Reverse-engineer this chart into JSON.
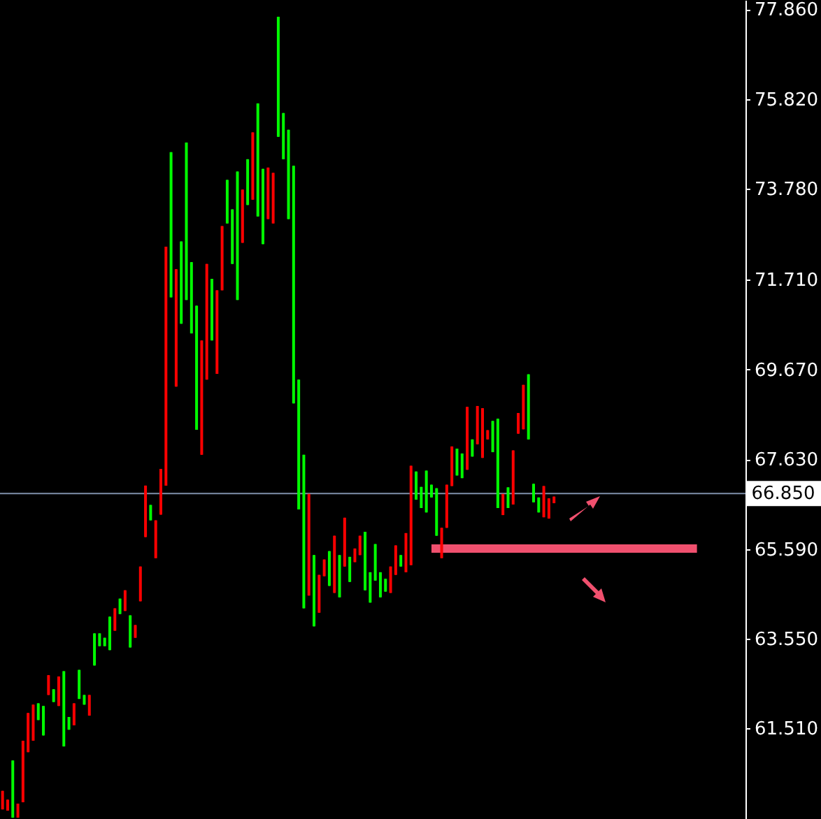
{
  "chart_data": {
    "type": "candlestick",
    "categories": [
      null,
      null,
      null,
      null,
      null,
      null,
      null,
      null,
      null,
      null,
      null,
      null,
      null,
      null,
      null,
      null,
      null,
      null,
      null,
      null,
      null,
      null,
      null,
      null,
      null,
      null,
      null,
      null,
      null,
      null,
      null,
      null,
      null,
      null,
      null,
      null,
      null,
      null,
      null,
      null,
      null,
      null,
      null,
      null,
      null,
      null,
      null,
      null,
      null,
      null,
      null,
      null,
      null,
      null,
      null,
      null,
      null,
      null,
      null,
      null,
      null,
      null,
      null,
      null,
      null,
      null,
      null,
      null,
      null,
      null,
      null,
      null,
      null,
      null,
      null,
      null,
      null,
      null,
      null,
      null,
      null,
      null,
      null,
      null,
      null,
      null,
      null,
      null,
      null,
      null,
      null,
      null,
      null,
      null,
      null,
      null,
      null,
      null,
      null,
      null,
      null,
      null,
      null,
      null,
      null,
      null,
      null,
      null,
      null,
      null,
      null,
      null,
      null,
      null,
      null,
      null,
      null,
      null,
      null,
      null,
      null,
      null,
      null,
      null,
      null,
      null,
      null,
      null,
      null,
      null,
      null,
      null,
      null,
      null,
      null,
      null,
      null,
      null,
      null,
      null,
      null,
      null,
      null,
      null,
      null,
      null
    ],
    "ohlc": [
      [
        59.67,
        60.09,
        59.67,
        60.09
      ],
      [
        59.64,
        59.89,
        59.64,
        59.89
      ],
      [
        60.78,
        60.78,
        59.48,
        59.48
      ],
      [
        59.48,
        59.8,
        59.48,
        59.8
      ],
      [
        59.83,
        61.23,
        59.83,
        61.23
      ],
      [
        60.97,
        61.86,
        60.97,
        61.86
      ],
      [
        61.23,
        62.05,
        61.23,
        62.05
      ],
      [
        62.08,
        62.08,
        61.7,
        61.7
      ],
      [
        62.02,
        62.02,
        61.35,
        61.35
      ],
      [
        62.27,
        62.72,
        62.27,
        62.72
      ],
      [
        62.4,
        62.4,
        62.11,
        62.11
      ],
      [
        62.02,
        62.69,
        62.02,
        62.69
      ],
      [
        62.81,
        62.81,
        61.1,
        61.1
      ],
      [
        61.77,
        61.77,
        61.48,
        61.48
      ],
      [
        61.58,
        62.08,
        61.58,
        62.08
      ],
      [
        62.84,
        62.84,
        62.18,
        62.18
      ],
      [
        62.27,
        62.27,
        62.05,
        62.05
      ],
      [
        61.8,
        62.27,
        61.8,
        62.27
      ],
      [
        63.67,
        63.67,
        62.94,
        62.94
      ],
      [
        63.67,
        63.67,
        63.38,
        63.38
      ],
      [
        63.57,
        63.57,
        63.38,
        63.38
      ],
      [
        64.05,
        64.05,
        63.29,
        63.29
      ],
      [
        63.73,
        64.24,
        63.73,
        64.24
      ],
      [
        64.46,
        64.46,
        64.11,
        64.11
      ],
      [
        64.18,
        64.65,
        64.18,
        64.65
      ],
      [
        64.08,
        64.08,
        63.35,
        63.35
      ],
      [
        63.57,
        63.86,
        63.57,
        63.86
      ],
      [
        64.4,
        65.19,
        64.4,
        65.19
      ],
      [
        65.86,
        67.03,
        65.86,
        67.03
      ],
      [
        66.59,
        66.59,
        66.24,
        66.24
      ],
      [
        65.38,
        66.24,
        65.38,
        66.24
      ],
      [
        66.37,
        67.41,
        66.37,
        67.41
      ],
      [
        67.03,
        72.46,
        67.03,
        72.46
      ],
      [
        74.61,
        74.61,
        71.31,
        71.31
      ],
      [
        69.28,
        71.95,
        69.28,
        71.95
      ],
      [
        72.58,
        72.58,
        70.71,
        70.71
      ],
      [
        74.83,
        74.83,
        71.25,
        71.25
      ],
      [
        72.11,
        72.11,
        70.49,
        70.49
      ],
      [
        71.12,
        71.12,
        68.3,
        68.3
      ],
      [
        67.73,
        70.33,
        67.73,
        70.33
      ],
      [
        69.44,
        72.07,
        69.44,
        72.07
      ],
      [
        71.73,
        71.73,
        70.33,
        70.33
      ],
      [
        69.57,
        71.47,
        69.57,
        71.47
      ],
      [
        71.47,
        72.93,
        71.47,
        72.93
      ],
      [
        73.98,
        73.98,
        72.99,
        72.99
      ],
      [
        73.31,
        73.31,
        72.07,
        72.07
      ],
      [
        74.17,
        74.17,
        71.25,
        71.25
      ],
      [
        72.55,
        73.76,
        72.55,
        73.76
      ],
      [
        74.45,
        74.45,
        73.41,
        73.41
      ],
      [
        73.53,
        75.06,
        73.53,
        75.06
      ],
      [
        75.72,
        75.72,
        73.15,
        73.15
      ],
      [
        74.23,
        74.23,
        72.52,
        72.52
      ],
      [
        73.09,
        74.26,
        73.09,
        74.26
      ],
      [
        72.99,
        74.14,
        72.99,
        74.14
      ],
      [
        77.69,
        77.69,
        74.96,
        74.96
      ],
      [
        75.5,
        75.5,
        74.45,
        74.45
      ],
      [
        75.12,
        75.12,
        73.09,
        73.09
      ],
      [
        74.3,
        74.3,
        68.9,
        68.9
      ],
      [
        69.44,
        69.44,
        66.49,
        66.49
      ],
      [
        67.73,
        67.73,
        64.24,
        64.24
      ],
      [
        64.53,
        66.84,
        64.53,
        66.84
      ],
      [
        65.45,
        65.45,
        63.83,
        63.83
      ],
      [
        64.14,
        65.0,
        64.14,
        65.0
      ],
      [
        64.97,
        65.35,
        64.97,
        65.35
      ],
      [
        65.54,
        65.54,
        64.75,
        64.75
      ],
      [
        64.59,
        65.89,
        64.59,
        65.89
      ],
      [
        65.45,
        65.45,
        64.49,
        64.49
      ],
      [
        65.19,
        66.3,
        65.19,
        66.3
      ],
      [
        65.41,
        65.41,
        64.84,
        64.84
      ],
      [
        65.29,
        65.6,
        65.29,
        65.6
      ],
      [
        65.45,
        65.89,
        65.45,
        65.89
      ],
      [
        65.98,
        65.98,
        64.65,
        64.65
      ],
      [
        65.06,
        65.06,
        64.37,
        64.37
      ],
      [
        65.7,
        65.7,
        64.87,
        64.87
      ],
      [
        65.06,
        65.06,
        64.49,
        64.49
      ],
      [
        64.91,
        64.91,
        64.62,
        64.62
      ],
      [
        64.59,
        65.19,
        64.59,
        65.19
      ],
      [
        65.0,
        65.67,
        65.0,
        65.67
      ],
      [
        65.45,
        65.45,
        65.19,
        65.19
      ],
      [
        65.06,
        65.95,
        65.06,
        65.95
      ],
      [
        65.22,
        67.48,
        65.22,
        67.48
      ],
      [
        67.35,
        67.35,
        66.71,
        66.71
      ],
      [
        67.0,
        67.0,
        66.52,
        66.52
      ],
      [
        67.37,
        67.37,
        66.42,
        66.42
      ],
      [
        67.05,
        67.05,
        66.76,
        66.76
      ],
      [
        66.97,
        66.97,
        65.89,
        65.89
      ],
      [
        65.38,
        66.07,
        65.38,
        66.07
      ],
      [
        66.07,
        67.05,
        66.07,
        67.05
      ],
      [
        67.02,
        67.92,
        67.02,
        67.92
      ],
      [
        67.87,
        67.87,
        67.26,
        67.26
      ],
      [
        67.76,
        67.76,
        67.2,
        67.2
      ],
      [
        67.39,
        68.82,
        67.39,
        68.82
      ],
      [
        68.08,
        68.08,
        67.69,
        67.69
      ],
      [
        67.97,
        68.84,
        67.97,
        68.84
      ],
      [
        67.66,
        68.79,
        67.66,
        68.79
      ],
      [
        68.08,
        68.29,
        68.08,
        68.29
      ],
      [
        68.5,
        68.5,
        67.79,
        67.79
      ],
      [
        68.55,
        68.55,
        66.52,
        66.52
      ],
      [
        66.36,
        66.84,
        66.36,
        66.84
      ],
      [
        66.99,
        66.99,
        66.52,
        66.52
      ],
      [
        66.6,
        67.83,
        66.6,
        67.83
      ],
      [
        68.21,
        68.68,
        68.21,
        68.68
      ],
      [
        68.31,
        69.32,
        68.31,
        69.32
      ],
      [
        69.56,
        69.56,
        68.08,
        68.08
      ],
      [
        67.07,
        67.07,
        66.65,
        66.65
      ],
      [
        66.76,
        66.76,
        66.42,
        66.42
      ],
      [
        66.31,
        67.02,
        66.31,
        67.02
      ],
      [
        66.28,
        66.74,
        66.28,
        66.74
      ],
      [
        66.63,
        66.78,
        66.63,
        66.78
      ],
      null,
      null,
      null,
      null,
      null,
      null,
      null,
      null,
      null,
      null,
      null,
      null,
      null,
      null,
      null,
      null,
      null,
      null,
      null,
      null,
      null,
      null,
      null,
      null,
      null,
      null,
      null,
      null,
      null,
      null,
      null,
      null,
      null,
      null,
      null,
      null,
      null
    ],
    "colors": [
      "#ff0000",
      "#ff0000",
      "#00ff00",
      "#ff0000",
      "#ff0000",
      "#ff0000",
      "#ff0000",
      "#00ff00",
      "#00ff00",
      "#ff0000",
      "#00ff00",
      "#ff0000",
      "#00ff00",
      "#00ff00",
      "#ff0000",
      "#00ff00",
      "#00ff00",
      "#ff0000",
      "#00ff00",
      "#00ff00",
      "#00ff00",
      "#00ff00",
      "#ff0000",
      "#00ff00",
      "#ff0000",
      "#00ff00",
      "#ff0000",
      "#ff0000",
      "#ff0000",
      "#00ff00",
      "#ff0000",
      "#ff0000",
      "#ff0000",
      "#00ff00",
      "#ff0000",
      "#00ff00",
      "#00ff00",
      "#00ff00",
      "#00ff00",
      "#ff0000",
      "#ff0000",
      "#00ff00",
      "#ff0000",
      "#ff0000",
      "#00ff00",
      "#00ff00",
      "#00ff00",
      "#ff0000",
      "#00ff00",
      "#ff0000",
      "#00ff00",
      "#00ff00",
      "#ff0000",
      "#ff0000",
      "#00ff00",
      "#00ff00",
      "#00ff00",
      "#00ff00",
      "#00ff00",
      "#00ff00",
      "#ff0000",
      "#00ff00",
      "#ff0000",
      "#ff0000",
      "#00ff00",
      "#ff0000",
      "#00ff00",
      "#ff0000",
      "#00ff00",
      "#ff0000",
      "#ff0000",
      "#00ff00",
      "#00ff00",
      "#00ff00",
      "#00ff00",
      "#00ff00",
      "#ff0000",
      "#ff0000",
      "#00ff00",
      "#ff0000",
      "#ff0000",
      "#00ff00",
      "#00ff00",
      "#00ff00",
      "#00ff00",
      "#00ff00",
      "#ff0000",
      "#ff0000",
      "#ff0000",
      "#00ff00",
      "#00ff00",
      "#ff0000",
      "#00ff00",
      "#ff0000",
      "#ff0000",
      "#ff0000",
      "#00ff00",
      "#00ff00",
      "#ff0000",
      "#00ff00",
      "#ff0000",
      "#ff0000",
      "#ff0000",
      "#00ff00",
      "#00ff00",
      "#00ff00",
      "#ff0000",
      "#ff0000",
      "#ff0000",
      null,
      null,
      null,
      null,
      null,
      null,
      null,
      null,
      null,
      null,
      null,
      null,
      null,
      null,
      null,
      null,
      null,
      null,
      null,
      null,
      null,
      null,
      null,
      null,
      null,
      null,
      null,
      null,
      null,
      null,
      null,
      null,
      null,
      null,
      null,
      null,
      null
    ],
    "series": [
      {
        "type": "line",
        "color": "#f0506e",
        "values": [
          null,
          null,
          null,
          null,
          null,
          null,
          null,
          null,
          null,
          null,
          null,
          null,
          null,
          null,
          null,
          null,
          null,
          null,
          null,
          null,
          null,
          null,
          null,
          null,
          null,
          null,
          null,
          null,
          null,
          null,
          null,
          null,
          null,
          null,
          null,
          null,
          null,
          null,
          null,
          null,
          null,
          null,
          null,
          null,
          null,
          null,
          null,
          null,
          null,
          null,
          null,
          null,
          null,
          null,
          null,
          null,
          null,
          null,
          null,
          null,
          null,
          null,
          null,
          null,
          null,
          null,
          null,
          null,
          null,
          null,
          null,
          null,
          null,
          null,
          null,
          null,
          null,
          null,
          null,
          null,
          null,
          null,
          null,
          null,
          65.6,
          65.6,
          65.6,
          65.6,
          65.6,
          65.6,
          65.6,
          65.6,
          65.6,
          65.6,
          65.6,
          65.6,
          65.6,
          65.6,
          65.6,
          65.6,
          65.6,
          65.6,
          65.6,
          65.6,
          65.6,
          65.6,
          65.6,
          65.6,
          65.6,
          65.6,
          65.6,
          65.6,
          65.6,
          65.6,
          65.6,
          65.6,
          65.6,
          65.6,
          65.6,
          65.6,
          65.6,
          65.6,
          65.6,
          65.6,
          65.6,
          65.6,
          65.6,
          65.6,
          65.6,
          65.6,
          65.6,
          65.6,
          65.6,
          65.6,
          65.6,
          65.6,
          65.6,
          null,
          null,
          null,
          null,
          null,
          null,
          null,
          null,
          null
        ]
      }
    ],
    "ylim": [
      59.45,
      78.07
    ],
    "yticks": [
      {
        "value": 77.86,
        "label": "77.860"
      },
      {
        "value": 75.82,
        "label": "75.820"
      },
      {
        "value": 73.78,
        "label": "73.780"
      },
      {
        "value": 71.71,
        "label": "71.710"
      },
      {
        "value": 69.67,
        "label": "69.670"
      },
      {
        "value": 67.63,
        "label": "67.630"
      },
      {
        "value": 65.59,
        "label": "65.590"
      },
      {
        "value": 63.55,
        "label": "63.550"
      },
      {
        "value": 61.51,
        "label": "61.510"
      }
    ],
    "ref_lines": [
      {
        "axis": "y",
        "value": 66.85,
        "label": "66.850",
        "color": "#7f90aa"
      }
    ],
    "tick_labels": "y"
  }
}
